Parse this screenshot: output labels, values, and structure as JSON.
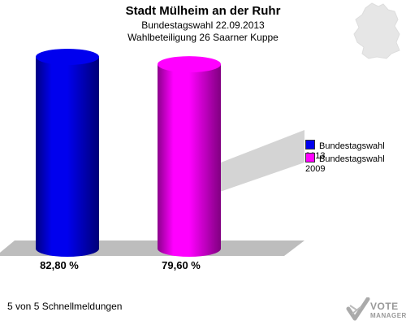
{
  "header": {
    "title": "Stadt Mülheim an der Ruhr",
    "subtitle1": "Bundestagswahl 22.09.2013",
    "subtitle2": "Wahlbeteiligung 26 Saarner Kuppe"
  },
  "chart_data": {
    "type": "bar",
    "categories": [
      "Bundestagswahl 2013",
      "Bundestagswahl 2009"
    ],
    "values": [
      82.8,
      79.6
    ],
    "value_labels": [
      "82,80 %",
      "79,60 %"
    ],
    "colors": [
      "#0000ee",
      "#ff00ff"
    ],
    "ylim": [
      0,
      82.8
    ],
    "legend": [
      "Bundestagswahl 2013",
      "Bundestagswahl 2009"
    ],
    "legend_position": "right",
    "grid": false
  },
  "footer": {
    "text": "5 von 5 Schnellmeldungen"
  },
  "logo": {
    "line1": "VOTE",
    "line2": "MANAGER"
  },
  "icons": [
    "germany-map-icon",
    "vote-checkmark-icon"
  ]
}
